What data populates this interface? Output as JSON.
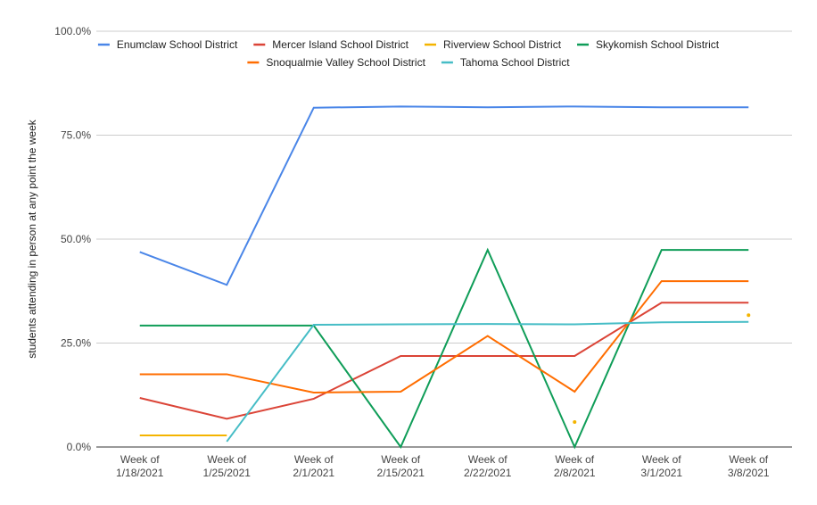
{
  "chart_data": {
    "type": "line",
    "ylabel": "students attending in person at any point the week",
    "ylim": [
      0,
      100
    ],
    "y_ticks": [
      "0.0%",
      "25.0%",
      "50.0%",
      "75.0%",
      "100.0%"
    ],
    "grid": true,
    "legend_position": "top",
    "categories": [
      [
        "Week of",
        "1/18/2021"
      ],
      [
        "Week of",
        "1/25/2021"
      ],
      [
        "Week of",
        "2/1/2021"
      ],
      [
        "Week of",
        "2/15/2021"
      ],
      [
        "Week of",
        "2/22/2021"
      ],
      [
        "Week of",
        "2/8/2021"
      ],
      [
        "Week of",
        "3/1/2021"
      ],
      [
        "Week of",
        "3/8/2021"
      ]
    ],
    "series": [
      {
        "name": "Enumclaw School District",
        "color": "#4a86e8",
        "values": [
          46.9,
          39.0,
          81.6,
          81.9,
          81.7,
          81.9,
          81.7,
          81.7
        ]
      },
      {
        "name": "Mercer Island School District",
        "color": "#db4437",
        "values": [
          11.8,
          6.8,
          11.6,
          21.9,
          21.9,
          21.9,
          34.7,
          34.7
        ]
      },
      {
        "name": "Riverview School District",
        "color": "#f4b400",
        "values": [
          2.8,
          2.8,
          null,
          null,
          null,
          6.0,
          null,
          31.7
        ]
      },
      {
        "name": "Skykomish School District",
        "color": "#0f9d58",
        "values": [
          29.2,
          29.2,
          29.2,
          0.0,
          47.4,
          0.0,
          47.4,
          47.4
        ]
      },
      {
        "name": "Snoqualmie Valley School District",
        "color": "#ff6d00",
        "values": [
          17.5,
          17.5,
          13.1,
          13.3,
          26.7,
          13.3,
          39.9,
          39.9
        ]
      },
      {
        "name": "Tahoma School District",
        "color": "#46bdc6",
        "values": [
          null,
          1.3,
          29.4,
          29.5,
          29.6,
          29.5,
          30.0,
          30.1
        ]
      }
    ]
  }
}
